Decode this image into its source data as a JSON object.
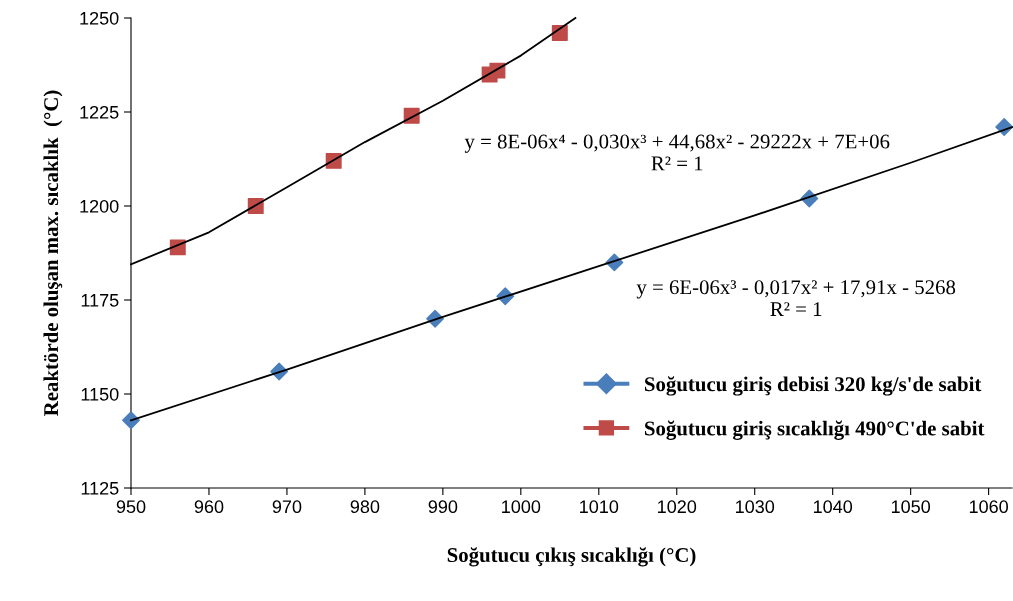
{
  "chart_data": {
    "type": "scatter",
    "xlabel": "Soğutucu çıkış sıcaklığı (°C)",
    "ylabel": "Reaktörde oluşan max. sıcaklık  (°C)",
    "xlim": [
      950,
      1063
    ],
    "xticks": [
      950,
      960,
      970,
      980,
      990,
      1000,
      1010,
      1020,
      1030,
      1040,
      1050,
      1060
    ],
    "ylim": [
      1125,
      1250
    ],
    "yticks": [
      1125,
      1150,
      1175,
      1200,
      1225,
      1250
    ],
    "grid": false,
    "legend": "right",
    "series": [
      {
        "name": "Soğutucu giriş debisi 320 kg/s'de sabit",
        "color": "#4a7ebb",
        "marker": "diamond",
        "x": [
          950,
          969,
          989,
          998,
          1012,
          1037,
          1062
        ],
        "values": [
          1143,
          1156,
          1170,
          1176,
          1185,
          1202,
          1221
        ]
      },
      {
        "name": "Soğutucu giriş sıcaklığı 490°C'de sabit",
        "color": "#be4b48",
        "marker": "square",
        "x": [
          956,
          966,
          976,
          986,
          996,
          997,
          1005
        ],
        "values": [
          1189,
          1200,
          1212,
          1224,
          1235,
          1236,
          1246
        ]
      },
      {
        "type": "line",
        "color": "#000000",
        "marker": "none",
        "x": [
          950,
          970,
          990,
          1010,
          1030,
          1050,
          1063
        ],
        "values": [
          1143,
          1156.5,
          1170.5,
          1184,
          1197.5,
          1211.5,
          1221
        ]
      },
      {
        "type": "line",
        "color": "#000000",
        "marker": "none",
        "x": [
          950,
          960,
          970,
          980,
          990,
          1000,
          1007
        ],
        "values": [
          1184.5,
          1193,
          1205,
          1217,
          1228,
          1240,
          1250
        ]
      }
    ],
    "annotations": [
      "y = 8E-06x⁴ - 0,030x³ + 44,68x² - 29222x + 7E+06\nR² = 1",
      "y = 6E-06x³ - 0,017x² + 17,91x - 5268\nR² = 1"
    ]
  }
}
